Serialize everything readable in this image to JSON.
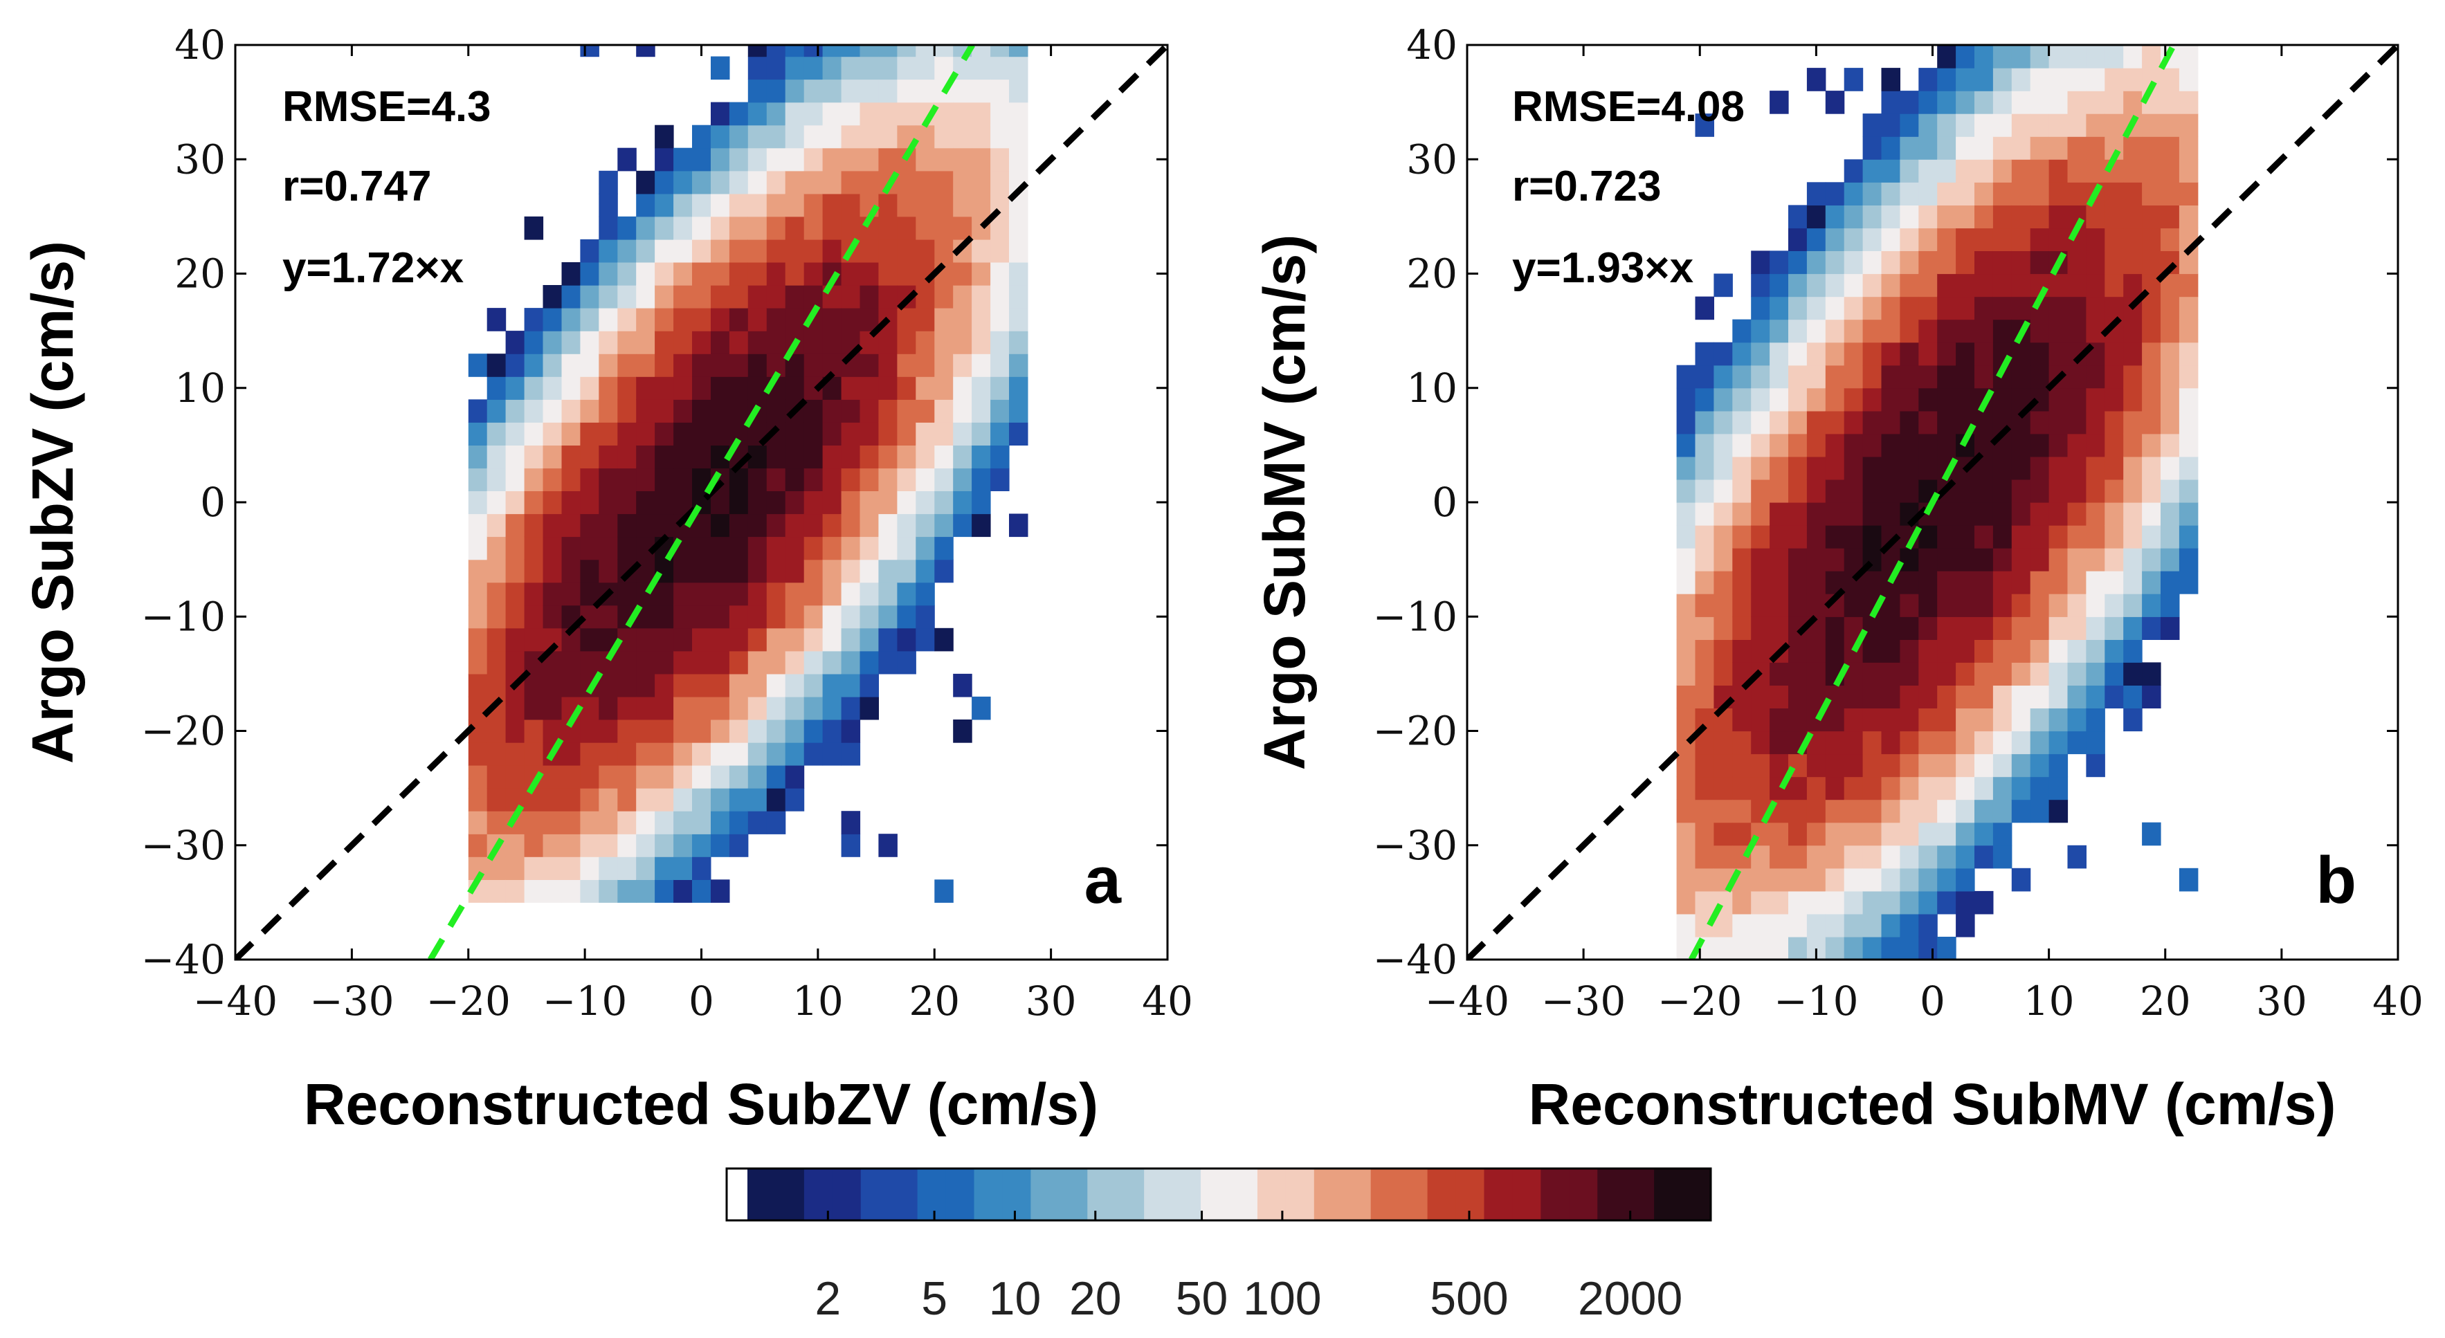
{
  "colors": {
    "ref_line": "#000000",
    "fit_line": "#22ee22",
    "colormap": [
      "#1a0a12",
      "#3d0a1a",
      "#6b0f20",
      "#9c1b22",
      "#c2402b",
      "#d96c4a",
      "#e9a080",
      "#f3cdbd",
      "#f2eeee",
      "#cfdde5",
      "#a3c6d6",
      "#6aa8c9",
      "#3889c2",
      "#1f68b8",
      "#1f4aa8",
      "#1b2c86",
      "#101a55"
    ]
  },
  "colorbar": {
    "ticks": [
      "2",
      "5",
      "10",
      "20",
      "50",
      "100",
      "500",
      "2000"
    ],
    "tick_values": [
      2,
      5,
      10,
      20,
      50,
      100,
      500,
      2000
    ],
    "range": [
      1,
      4000
    ]
  },
  "chart_data": [
    {
      "type": "heatmap",
      "panel": "a",
      "xlabel": "Reconstructed SubZV (cm/s)",
      "ylabel": "Argo SubZV (cm/s)",
      "xlim": [
        -40,
        40
      ],
      "ylim": [
        -40,
        40
      ],
      "xticks": [
        "−40",
        "−30",
        "−20",
        "−10",
        "0",
        "10",
        "20",
        "30",
        "40"
      ],
      "yticks": [
        "40",
        "30",
        "20",
        "10",
        "0",
        "−10",
        "−20",
        "−30",
        "−40"
      ],
      "stats": [
        "RMSE=4.3",
        "r=0.747",
        "y=1.72×x"
      ],
      "fit_slope": 1.72,
      "reference_line": "y=x",
      "density": {
        "center": [
          0,
          0
        ],
        "sigma_x": 9,
        "sigma_y": 12,
        "correlation": 0.75,
        "peak_count": 3000
      },
      "x_extent": [
        -20,
        27
      ],
      "y_extent": [
        -35,
        40
      ]
    },
    {
      "type": "heatmap",
      "panel": "b",
      "xlabel": "Reconstructed SubMV (cm/s)",
      "ylabel": "Argo SubMV (cm/s)",
      "xlim": [
        -40,
        40
      ],
      "ylim": [
        -40,
        40
      ],
      "xticks": [
        "−40",
        "−30",
        "−20",
        "−10",
        "0",
        "10",
        "20",
        "30",
        "40"
      ],
      "yticks": [
        "40",
        "30",
        "20",
        "10",
        "0",
        "−10",
        "−20",
        "−30",
        "−40"
      ],
      "stats": [
        "RMSE=4.08",
        "r=0.723",
        "y=1.93×x"
      ],
      "fit_slope": 1.93,
      "reference_line": "y=x",
      "density": {
        "center": [
          0,
          0
        ],
        "sigma_x": 9,
        "sigma_y": 13,
        "correlation": 0.72,
        "peak_count": 3000
      },
      "x_extent": [
        -22,
        22
      ],
      "y_extent": [
        -40,
        40
      ]
    }
  ]
}
